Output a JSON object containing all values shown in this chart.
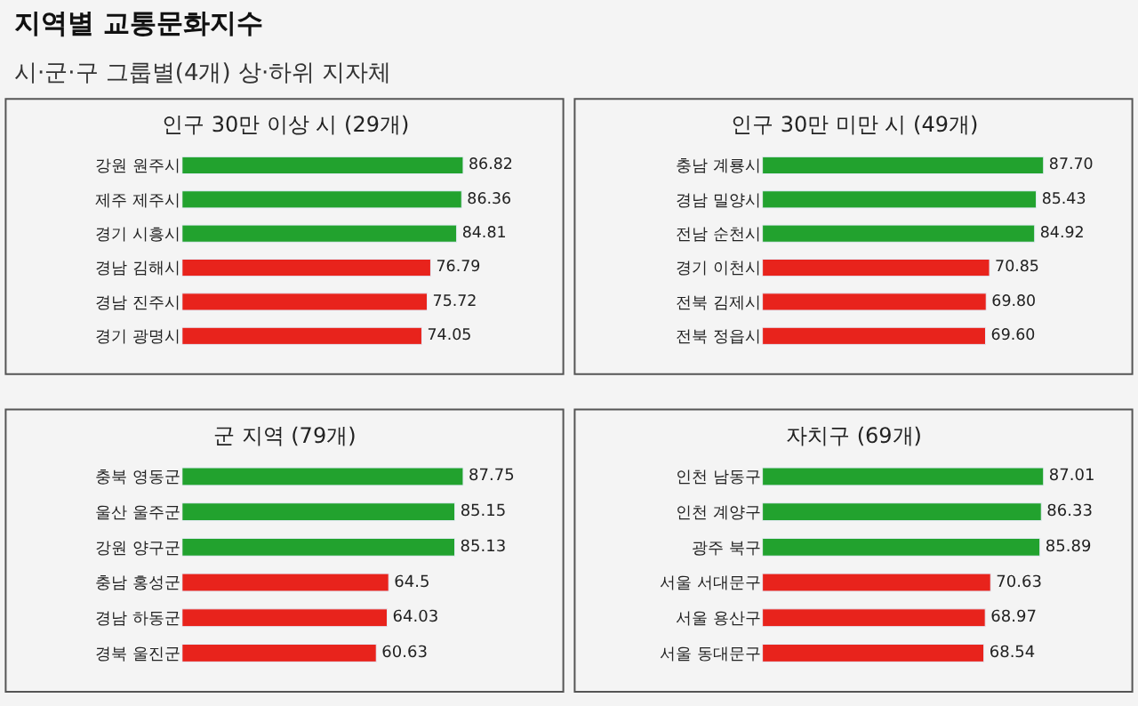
{
  "chart_data": [
    {
      "type": "other",
      "title": "지역별 교통문화지수",
      "subtitle": "시·군·구 그룹별(4개) 상·하위 지자체"
    },
    {
      "type": "bar",
      "orientation": "horizontal",
      "title": "인구 30만 이상 시 (29개)",
      "categories": [
        "강원 원주시",
        "제주 제주시",
        "경기 시흥시",
        "경남 김해시",
        "경남 진주시",
        "경기 광명시"
      ],
      "values": [
        86.82,
        86.36,
        84.81,
        76.79,
        75.72,
        74.05
      ],
      "value_labels": [
        "86.82",
        "86.36",
        "84.81",
        "76.79",
        "75.72",
        "74.05"
      ],
      "colors": [
        "#22a22e",
        "#22a22e",
        "#22a22e",
        "#e8231c",
        "#e8231c",
        "#e8231c"
      ],
      "tick_labels": "y",
      "grid": false
    },
    {
      "type": "bar",
      "orientation": "horizontal",
      "title": "인구 30만 미만 시 (49개)",
      "categories": [
        "충남 계룡시",
        "경남 밀양시",
        "전남 순천시",
        "경기 이천시",
        "전북 김제시",
        "전북 정읍시"
      ],
      "values": [
        87.7,
        85.43,
        84.92,
        70.85,
        69.8,
        69.6
      ],
      "value_labels": [
        "87.70",
        "85.43",
        "84.92",
        "70.85",
        "69.80",
        "69.60"
      ],
      "colors": [
        "#22a22e",
        "#22a22e",
        "#22a22e",
        "#e8231c",
        "#e8231c",
        "#e8231c"
      ],
      "tick_labels": "y",
      "grid": false
    },
    {
      "type": "bar",
      "orientation": "horizontal",
      "title": "군 지역 (79개)",
      "categories": [
        "충북 영동군",
        "울산 울주군",
        "강원 양구군",
        "충남 홍성군",
        "경남 하동군",
        "경북 울진군"
      ],
      "values": [
        87.75,
        85.15,
        85.13,
        64.5,
        64.03,
        60.63
      ],
      "value_labels": [
        "87.75",
        "85.15",
        "85.13",
        "64.5",
        "64.03",
        "60.63"
      ],
      "colors": [
        "#22a22e",
        "#22a22e",
        "#22a22e",
        "#e8231c",
        "#e8231c",
        "#e8231c"
      ],
      "tick_labels": "y",
      "grid": false
    },
    {
      "type": "bar",
      "orientation": "horizontal",
      "title": "자치구 (69개)",
      "categories": [
        "인천 남동구",
        "인천 계양구",
        "광주 북구",
        "서울 서대문구",
        "서울 용산구",
        "서울 동대문구"
      ],
      "values": [
        87.01,
        86.33,
        85.89,
        70.63,
        68.97,
        68.54
      ],
      "value_labels": [
        "87.01",
        "86.33",
        "85.89",
        "70.63",
        "68.97",
        "68.54"
      ],
      "colors": [
        "#22a22e",
        "#22a22e",
        "#22a22e",
        "#e8231c",
        "#e8231c",
        "#e8231c"
      ],
      "tick_labels": "y",
      "grid": false
    }
  ]
}
